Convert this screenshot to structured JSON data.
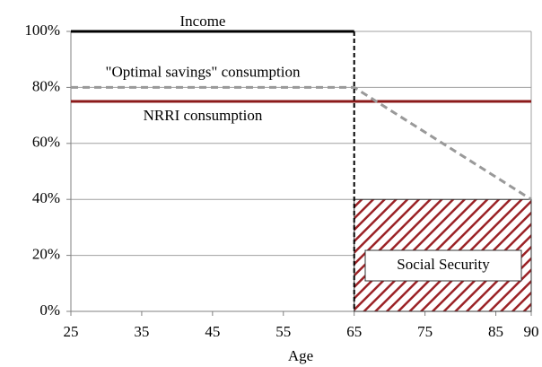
{
  "chart_data": {
    "type": "line",
    "x_label": "Age",
    "xlim": [
      25,
      90
    ],
    "xticks": [
      25,
      35,
      45,
      55,
      65,
      75,
      85,
      90
    ],
    "ylim": [
      0,
      100
    ],
    "yticks": [
      {
        "value": 0,
        "label": "0%"
      },
      {
        "value": 20,
        "label": "20%"
      },
      {
        "value": 40,
        "label": "40%"
      },
      {
        "value": 60,
        "label": "60%"
      },
      {
        "value": 80,
        "label": "80%"
      },
      {
        "value": 100,
        "label": "100%"
      }
    ],
    "grid": true,
    "series": [
      {
        "name": "Social Security",
        "kind": "hatched-area",
        "color": "#9b2226",
        "x": [
          65,
          90
        ],
        "values": [
          40,
          40
        ]
      },
      {
        "name": "NRRI consumption",
        "kind": "line",
        "color": "#8b1a1a",
        "dashed": false,
        "x": [
          25,
          90
        ],
        "values": [
          75,
          75
        ]
      },
      {
        "name": "\"Optimal savings\" consumption",
        "kind": "line",
        "color": "#999999",
        "dashed": true,
        "x": [
          25,
          65,
          90
        ],
        "values": [
          80,
          80,
          40
        ]
      },
      {
        "name": "Income",
        "kind": "line",
        "color": "#000000",
        "segment_dashed": [
          false,
          true
        ],
        "x": [
          25,
          65,
          65
        ],
        "values": [
          100,
          100,
          0
        ]
      }
    ]
  }
}
